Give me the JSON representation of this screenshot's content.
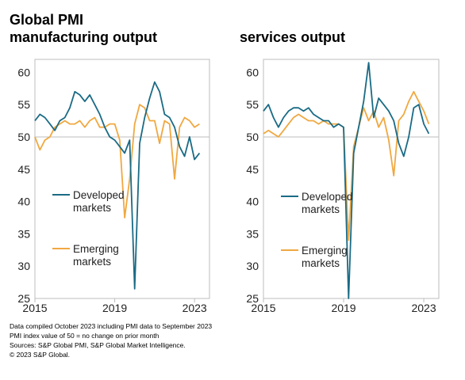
{
  "chart_data": [
    {
      "type": "line",
      "title": "Global PMI",
      "subtitle": "manufacturing output",
      "xlabel": "",
      "ylabel": "",
      "x_ticks": [
        "2015",
        "2019",
        "2023"
      ],
      "y_ticks": [
        25,
        30,
        35,
        40,
        45,
        50,
        55,
        60
      ],
      "ylim": [
        25,
        62
      ],
      "xlim": [
        2015.0,
        2023.75
      ],
      "reference_line": 50,
      "grid": false,
      "legend_placement": "left",
      "series": [
        {
          "name": "Developed markets",
          "color": "#1a6b85",
          "start": 2015.0,
          "step_months": 3,
          "values": [
            52.5,
            53.5,
            53.0,
            52.0,
            51.0,
            52.5,
            53.0,
            54.5,
            57.0,
            56.5,
            55.5,
            56.5,
            55.0,
            53.5,
            51.5,
            50.0,
            49.5,
            48.5,
            47.5,
            49.5,
            26.5,
            49.0,
            53.0,
            56.0,
            58.5,
            57.0,
            53.5,
            53.0,
            51.5,
            48.5,
            47.0,
            50.0,
            46.5,
            47.5
          ]
        },
        {
          "name": "Emerging markets",
          "color": "#f0a840",
          "start": 2015.0,
          "step_months": 3,
          "values": [
            50.0,
            48.0,
            49.5,
            50.0,
            51.5,
            52.0,
            52.5,
            52.0,
            52.0,
            52.5,
            51.5,
            52.5,
            53.0,
            51.5,
            51.5,
            52.0,
            52.0,
            49.5,
            37.5,
            43.5,
            52.0,
            55.0,
            54.5,
            52.5,
            52.5,
            49.0,
            52.5,
            52.0,
            43.5,
            51.5,
            53.0,
            52.5,
            51.5,
            52.0
          ]
        }
      ]
    },
    {
      "type": "line",
      "title": "services output",
      "xlabel": "",
      "ylabel": "",
      "x_ticks": [
        "2015",
        "2019",
        "2023"
      ],
      "y_ticks": [
        25,
        30,
        35,
        40,
        45,
        50,
        55,
        60
      ],
      "ylim": [
        25,
        62
      ],
      "xlim": [
        2015.0,
        2023.75
      ],
      "reference_line": 50,
      "grid": false,
      "legend_placement": "left",
      "series": [
        {
          "name": "Developed markets",
          "color": "#1a6b85",
          "start": 2015.0,
          "step_months": 3,
          "values": [
            54.0,
            55.0,
            53.0,
            51.5,
            53.0,
            54.0,
            54.5,
            54.5,
            54.0,
            54.5,
            53.5,
            53.0,
            52.5,
            52.5,
            51.5,
            52.0,
            51.5,
            25.0,
            47.5,
            51.5,
            55.5,
            61.5,
            53.0,
            56.0,
            55.0,
            54.0,
            52.5,
            49.0,
            47.0,
            50.0,
            54.5,
            55.0,
            52.0,
            50.5
          ]
        },
        {
          "name": "Emerging markets",
          "color": "#f0a840",
          "start": 2015.0,
          "step_months": 3,
          "values": [
            50.5,
            51.0,
            50.5,
            50.0,
            51.0,
            52.0,
            53.0,
            53.5,
            53.0,
            52.5,
            52.5,
            52.0,
            52.5,
            52.0,
            52.0,
            52.0,
            51.5,
            34.0,
            48.5,
            51.5,
            54.5,
            52.5,
            54.0,
            51.5,
            53.0,
            49.5,
            44.0,
            52.5,
            53.5,
            55.5,
            57.0,
            55.5,
            54.0,
            52.0
          ]
        }
      ]
    }
  ],
  "footnote": {
    "line1": "Data compiled October 2023 including PMI data to September 2023",
    "line2": "PMI index value of 50 = no change on prior month",
    "line3": "Sources: S&P Global PMI, S&P Global Market Intelligence.",
    "line4": "© 2023 S&P Global."
  }
}
